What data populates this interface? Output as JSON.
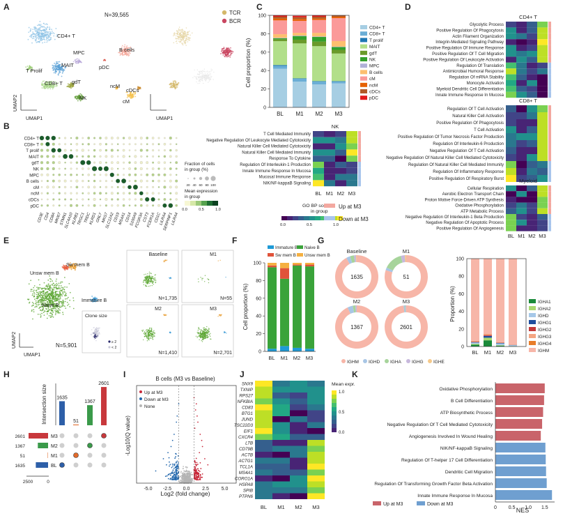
{
  "panel_letters": [
    "A",
    "B",
    "C",
    "D",
    "E",
    "F",
    "G",
    "H",
    "I",
    "J",
    "K"
  ],
  "panelA": {
    "count_label": "N=39,565",
    "axis_x": "UMAP1",
    "axis_y": "UMAP2",
    "clusters": [
      {
        "label": "CD4+ T",
        "color": "#8ec3e6"
      },
      {
        "label": "MAIT",
        "color": "#5aa0d6"
      },
      {
        "label": "MPC",
        "color": "#b9a9d9"
      },
      {
        "label": "T Prolif",
        "color": "#9fcf7a"
      },
      {
        "label": "CD8+ T",
        "color": "#a8d58a"
      },
      {
        "label": "gdT",
        "color": "#9aa33a"
      },
      {
        "label": "NK",
        "color": "#5f9b35"
      },
      {
        "label": "B cells",
        "color": "#f4a79a"
      },
      {
        "label": "pDC",
        "color": "#d9574b"
      },
      {
        "label": "ncM",
        "color": "#f2b640"
      },
      {
        "label": "cDCs",
        "color": "#c98a2e"
      },
      {
        "label": "cM",
        "color": "#f5c24c"
      }
    ],
    "legend": [
      {
        "label": "TCR",
        "color": "#d4b86a"
      },
      {
        "label": "BCR",
        "color": "#c94660"
      }
    ]
  },
  "panelB": {
    "rows": [
      "CD4+ T",
      "CD8+ T",
      "T prolif",
      "MAIT",
      "gdT",
      "NK",
      "MPC",
      "B cells",
      "cM",
      "ncM",
      "cDCs",
      "pDC"
    ],
    "genes": [
      "CD3E",
      "CD4",
      "CD8A",
      "MKI67",
      "STMN1",
      "SLC4A10",
      "KLRB1",
      "TRGC1",
      "TRDC",
      "KLRD1",
      "GNLY",
      "NKG7",
      "SLC12A2",
      "CD19",
      "MS4A1",
      "CD14",
      "S100A9",
      "FCGR3A",
      "CST3",
      "FCER1A",
      "CD1C",
      "LILRA4",
      "SERPINF1",
      "LILRA4"
    ],
    "size_title": "Fraction of cells in group (%)",
    "size_ticks": [
      "20",
      "40",
      "60",
      "80",
      "100"
    ],
    "color_title": "Mean expression in group",
    "color_ticks": [
      "0.0",
      "0.5",
      "1.0"
    ]
  },
  "panelC": {
    "ylabel": "Cell proportion (%)",
    "legend": [
      "CD4+ T",
      "CD8+ T",
      "T prolif",
      "MAIT",
      "gdT",
      "NK",
      "MPC",
      "B cells",
      "cM",
      "ncM",
      "cDCs",
      "pDC"
    ],
    "colors": [
      "#a6cee3",
      "#6baed6",
      "#1f78b4",
      "#b2df8a",
      "#6a9a2a",
      "#33a02c",
      "#b0b0d8",
      "#fdbf6f",
      "#fb9a99",
      "#e66101",
      "#b15928",
      "#e31a1c"
    ]
  },
  "panelD_titles": [
    "CD4+ T",
    "CD8+ T",
    "Myeloid"
  ],
  "panelD_cd4": [
    "Glycolytic Process",
    "Positive Regulation Of Phagocytosis",
    "Actin Filament Organization",
    "Integrin-Mediated Signaling Pathway",
    "Positive Regulation Of Immune Response",
    "Positive Regulation Of T Cell Migration",
    "Positive Regulation Of Leukocyte Activation",
    "Regulation Of Translation",
    "Antimicrobial Humoral Response",
    "Regulation Of mRNA Stability",
    "Monocyte Activation",
    "Myeloid Dendritic Cell Differentiation",
    "Innate Immune Response In Mucosa"
  ],
  "panelD_cd8": [
    "Regulation Of T Cell Activation",
    "Natural Killer Cell Activation",
    "Positive Regulation Of Phagocytosis",
    "T Cell Activation",
    "Positive Regulation Of Tumor Necrosis Factor Production",
    "Regulation Of Interleukin-6 Production",
    "Negative Regulation Of T Cell Activation",
    "Negative Regulation Of Natural Killer Cell Mediated Cytotoxicity",
    "Regulation Of Natural Killer Cell Mediated Immunity",
    "Regulation Of Inflammatory Response",
    "Positive Regulation Of Respiratory Burst"
  ],
  "panelD_myeloid": [
    "Cellular Respiration",
    "Aerobic Electron Transport Chain",
    "Proton Motive Force-Driven ATP Synthesis",
    "Oxidative Phosphorylation",
    "ATP Metabolic Process",
    "Negative Regulation Of Interleukin-1 Beta Production",
    "Negative Regulation Of Apoptotic Process",
    "Positive Regulation Of Angiogenesis"
  ],
  "panelD_nk_title": "NK",
  "panelD_nk": [
    "T Cell Mediated Immunity",
    "Negative Regulation Of Leukocyte Mediated Cytotoxicity",
    "Natural Killer Cell Mediated Cytotoxicity",
    "Natural Killer Cell Mediated Immunity",
    "Response To Cytokine",
    "Regulation Of Interleukin-1 Production",
    "Innate Immune Response In Mucosa",
    "Mucosal Immune Response",
    "NIK/NF-kappaB Signaling"
  ],
  "gobp": {
    "title": "GO BP score in group",
    "ticks": [
      "0.0",
      "0.5",
      "1.0"
    ],
    "up": "Up at M3",
    "down": "Down at M3"
  },
  "panelE": {
    "labels": [
      "Sw mem B",
      "Unsw mem B",
      "Naive B",
      "Immature B"
    ],
    "count": "N=5,901",
    "axis_x": "UMAP1",
    "axis_y": "UMAP2",
    "clone_title": "Clone size",
    "clone_legend": [
      "≥ 2",
      "< 2"
    ],
    "subpanels": [
      {
        "title": "Baseline",
        "n": "N=1,735"
      },
      {
        "title": "M1",
        "n": "N=55"
      },
      {
        "title": "M2",
        "n": "N=1,410"
      },
      {
        "title": "M3",
        "n": "N=2,701"
      }
    ]
  },
  "panelG": {
    "donuts": [
      {
        "title": "Baseline",
        "center": "1635"
      },
      {
        "title": "M1",
        "center": "51"
      },
      {
        "title": "M2",
        "center": "1367"
      },
      {
        "title": "M3",
        "center": "2601"
      }
    ],
    "legend_bottom": [
      "IGHM",
      "IGHD",
      "IGHA",
      "IGHG",
      "IGHE"
    ],
    "legend_colors": [
      "#f7b6a8",
      "#a8c6e5",
      "#a7d49b",
      "#c7b8dc",
      "#f5c98a"
    ],
    "bar_ylabel": "Proportion (%)",
    "bar_legend": [
      "IGHA1",
      "IGHA2",
      "IGHD",
      "IGHG1",
      "IGHG2",
      "IGHG3",
      "IGHG4",
      "IGHM"
    ],
    "bar_colors": [
      "#1a8a3a",
      "#a8d870",
      "#a6c8e8",
      "#1f4e9e",
      "#c33a3a",
      "#f4a582",
      "#e87d2a",
      "#f7b6a8"
    ]
  },
  "panelH": {
    "ylabel": "Intersection size",
    "bar_values": [
      1635,
      51,
      1367,
      2601
    ],
    "bar_colors": [
      "#2d5fa8",
      "#e26b2b",
      "#3a9a4a",
      "#c8383c"
    ],
    "set_labels": [
      "M3",
      "M2",
      "M1",
      "BL"
    ],
    "set_values": [
      2601,
      1367,
      51,
      1635
    ],
    "set_axis": [
      "2500",
      "0"
    ]
  },
  "panelI": {
    "title": "B cells (M3 vs Baseline)",
    "xlabel": "Log2 (fold change)",
    "ylabel": "-Log10(Q value)",
    "legend": [
      "Up at M3",
      "Down at M3",
      "None"
    ],
    "x_ticks": [
      "-5.0",
      "-2.5",
      "0.0",
      "2.5",
      "5.0"
    ]
  },
  "panelJ": {
    "genes": [
      "SNX9",
      "TXNIP",
      "RPS27",
      "NFKBIA",
      "CD83",
      "BTG1",
      "JUND",
      "TSC22D3",
      "EIF1",
      "CXCR4",
      "LTB",
      "CD79B",
      "ACTB",
      "ACTG1",
      "TCL1A",
      "MS4A1",
      "CORO1A",
      "HSPA8",
      "SPIB",
      "PTPN6"
    ],
    "groups": [
      "BL",
      "M1",
      "M2",
      "M3"
    ],
    "legend_title": "Mean expr.",
    "legend_ticks": [
      "1.0",
      "0.5",
      "0.0"
    ]
  },
  "panelK": {
    "xlabel": "NES",
    "x_ticks": [
      "0",
      "0.5",
      "1.0",
      "1.5"
    ],
    "legend_up": "Up at M3",
    "legend_down": "Down at M3",
    "pathways": [
      {
        "label": "Oxidative Phosphorylation",
        "dir": "up"
      },
      {
        "label": "B Cell Differentiation",
        "dir": "up"
      },
      {
        "label": "ATP Biosynthetic Process",
        "dir": "up"
      },
      {
        "label": "Negative Regulation Of T Cell Mediated Cytotoxicity",
        "dir": "up"
      },
      {
        "label": "Angiogenesis Involved In Wound Healing",
        "dir": "up"
      },
      {
        "label": "NIK/NF-kappaB Signaling",
        "dir": "down"
      },
      {
        "label": "Regulation Of T-helper 17 Cell Differentiation",
        "dir": "down"
      },
      {
        "label": "Dendritic Cell Migration",
        "dir": "down"
      },
      {
        "label": "Regulation Of Transforming Growth Factor Beta Activation",
        "dir": "down"
      },
      {
        "label": "Innate Immune Response In Mucosa",
        "dir": "down"
      }
    ],
    "colors": {
      "up": "#c9646a",
      "down": "#6f9fd0"
    }
  },
  "chart_data": [
    {
      "type": "bar",
      "panel": "C",
      "ylabel": "Cell proportion (%)",
      "categories": [
        "BL",
        "M1",
        "M2",
        "M3"
      ],
      "ylim": [
        0,
        100
      ],
      "stacked": true,
      "series": [
        {
          "name": "CD4+ T",
          "values": [
            42,
            28,
            25,
            26
          ]
        },
        {
          "name": "CD8+ T",
          "values": [
            3,
            3,
            3,
            2
          ]
        },
        {
          "name": "T prolif",
          "values": [
            1,
            0.5,
            0.5,
            0.5
          ]
        },
        {
          "name": "MAIT",
          "values": [
            26,
            38,
            38,
            30
          ]
        },
        {
          "name": "gdT",
          "values": [
            2,
            4,
            5,
            4
          ]
        },
        {
          "name": "NK",
          "values": [
            1,
            4,
            5,
            3
          ]
        },
        {
          "name": "MPC",
          "values": [
            0.5,
            0.5,
            0.5,
            0.5
          ]
        },
        {
          "name": "B cells",
          "values": [
            4,
            3,
            4,
            6
          ]
        },
        {
          "name": "cM",
          "values": [
            15,
            13,
            14,
            25
          ]
        },
        {
          "name": "ncM",
          "values": [
            2,
            2,
            1.5,
            1.5
          ]
        },
        {
          "name": "cDCs",
          "values": [
            2,
            2,
            2,
            1.5
          ]
        },
        {
          "name": "pDC",
          "values": [
            1.5,
            1.5,
            1.5,
            0
          ]
        }
      ]
    },
    {
      "type": "bar",
      "panel": "F",
      "ylabel": "Cell proportion (%)",
      "categories": [
        "BL",
        "M1",
        "M2",
        "M3"
      ],
      "ylim": [
        0,
        100
      ],
      "stacked": true,
      "series": [
        {
          "name": "Immature B",
          "values": [
            3,
            6,
            4,
            3
          ]
        },
        {
          "name": "Naive B",
          "values": [
            92,
            76,
            93,
            93
          ]
        },
        {
          "name": "Sw mem B",
          "values": [
            2,
            12,
            1,
            2
          ]
        },
        {
          "name": "Unsw mem B",
          "values": [
            3,
            6,
            2,
            2
          ]
        }
      ],
      "colors": [
        "#1f9ad6",
        "#3aa33a",
        "#e0533a",
        "#f5b041"
      ]
    },
    {
      "type": "pie",
      "panel": "G",
      "categories": [
        "IGHM",
        "IGHD",
        "IGHA",
        "IGHG",
        "IGHE"
      ],
      "series": [
        {
          "name": "Baseline",
          "values": [
            92,
            3,
            3,
            1.5,
            0.5
          ]
        },
        {
          "name": "M1",
          "values": [
            80,
            2,
            14,
            3,
            1
          ]
        },
        {
          "name": "M2",
          "values": [
            93,
            4,
            2,
            1,
            0
          ]
        },
        {
          "name": "M3",
          "values": [
            98,
            1,
            0.5,
            0.5,
            0
          ]
        }
      ]
    },
    {
      "type": "bar",
      "panel": "G",
      "ylabel": "Proportion (%)",
      "categories": [
        "BL",
        "M1",
        "M2",
        "M3"
      ],
      "ylim": [
        0,
        100
      ],
      "stacked": true,
      "series": [
        {
          "name": "IGHA1",
          "values": [
            2,
            7,
            1,
            0.3
          ]
        },
        {
          "name": "IGHA2",
          "values": [
            1,
            3,
            0.5,
            0.2
          ]
        },
        {
          "name": "IGHD",
          "values": [
            1.5,
            0,
            2,
            1
          ]
        },
        {
          "name": "IGHG1",
          "values": [
            0.5,
            2,
            0.5,
            0.2
          ]
        },
        {
          "name": "IGHG2",
          "values": [
            0.5,
            1,
            0.3,
            0.1
          ]
        },
        {
          "name": "IGHG3",
          "values": [
            0.5,
            0.5,
            0.3,
            0.1
          ]
        },
        {
          "name": "IGHG4",
          "values": [
            0.3,
            0.5,
            0.2,
            0.1
          ]
        },
        {
          "name": "IGHM",
          "values": [
            93.7,
            86,
            95.2,
            98
          ]
        }
      ]
    },
    {
      "type": "bar",
      "panel": "H",
      "ylabel": "Intersection size",
      "categories": [
        "BL",
        "M1",
        "M2",
        "M3"
      ],
      "values": [
        1635,
        51,
        1367,
        2601
      ]
    },
    {
      "type": "scatter",
      "panel": "I",
      "title": "B cells (M3 vs Baseline)",
      "xlabel": "Log2 (fold change)",
      "ylabel": "-Log10(Q value)",
      "xlim": [
        -6.5,
        6.5
      ],
      "series": [
        {
          "name": "Up at M3",
          "x": [
            1.0,
            1.2,
            1.5,
            1.8,
            2.1,
            2.4,
            1.1,
            1.4,
            1.7,
            2.8,
            1.3,
            2.0
          ],
          "y": [
            14,
            12,
            10,
            8,
            6,
            4,
            9,
            11,
            5,
            3,
            13,
            7
          ]
        },
        {
          "name": "Down at M3",
          "x": [
            -1.0,
            -1.3,
            -1.6,
            -2.0,
            -2.4,
            -3.0,
            -4.0,
            -1.2,
            -1.8,
            -2.6
          ],
          "y": [
            13,
            10,
            8,
            6,
            5,
            4,
            2,
            11,
            7,
            3
          ]
        }
      ]
    },
    {
      "type": "bar",
      "panel": "K",
      "xlabel": "NES",
      "categories": [
        "Oxidative Phosphorylation",
        "B Cell Differentiation",
        "ATP Biosynthetic Process",
        "Negative Regulation Of T Cell Mediated Cytotoxicity",
        "Angiogenesis Involved In Wound Healing",
        "NIK/NF-kappaB Signaling",
        "Regulation Of T-helper 17 Cell Differentiation",
        "Dendritic Cell Migration",
        "Regulation Of Transforming Growth Factor Beta Activation",
        "Innate Immune Response In Mucosa"
      ],
      "values": [
        1.5,
        1.48,
        1.45,
        1.42,
        1.38,
        1.52,
        1.53,
        1.54,
        1.56,
        1.72
      ],
      "xlim": [
        0,
        1.8
      ]
    }
  ]
}
